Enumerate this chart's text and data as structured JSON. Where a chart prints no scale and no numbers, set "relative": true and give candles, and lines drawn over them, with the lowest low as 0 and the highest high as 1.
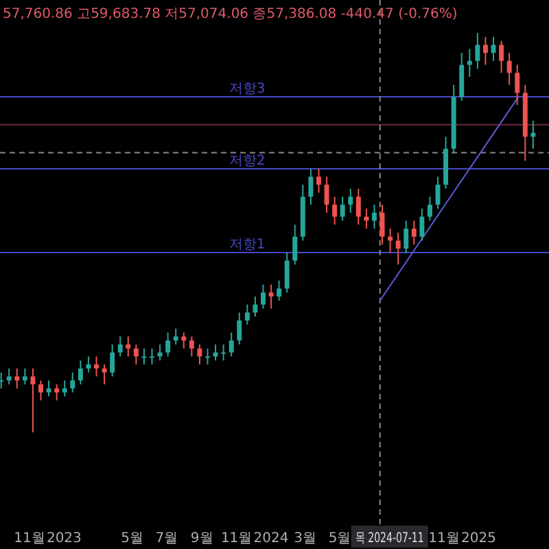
{
  "chart_data": {
    "type": "candlestick",
    "relative": true,
    "annotations": [
      "57,760.86 고59,683.78 저57,074.06 종57,386.08 -440.47 (-0.76%)"
    ],
    "x": [
      "2022-09-12",
      "2022-09-26",
      "2022-10-10",
      "2022-10-24",
      "2022-11-07",
      "2022-11-21",
      "2022-12-05",
      "2022-12-19",
      "2023-01-02",
      "2023-01-16",
      "2023-01-30",
      "2023-02-13",
      "2023-02-27",
      "2023-03-13",
      "2023-03-27",
      "2023-04-10",
      "2023-04-24",
      "2023-05-08",
      "2023-05-22",
      "2023-06-05",
      "2023-06-19",
      "2023-07-03",
      "2023-07-17",
      "2023-07-31",
      "2023-08-14",
      "2023-08-28",
      "2023-09-11",
      "2023-09-25",
      "2023-10-09",
      "2023-10-23",
      "2023-11-06",
      "2023-11-20",
      "2023-12-04",
      "2023-12-18",
      "2024-01-01",
      "2024-01-15",
      "2024-01-29",
      "2024-02-12",
      "2024-02-26",
      "2024-03-11",
      "2024-03-25",
      "2024-04-08",
      "2024-04-22",
      "2024-05-06",
      "2024-05-20",
      "2024-06-03",
      "2024-06-17",
      "2024-07-01",
      "2024-07-15",
      "2024-07-29",
      "2024-08-12",
      "2024-08-26",
      "2024-09-09",
      "2024-09-23",
      "2024-10-07",
      "2024-10-21",
      "2024-11-04",
      "2024-11-18",
      "2024-12-02",
      "2024-12-16",
      "2024-12-30",
      "2025-01-13",
      "2025-01-27",
      "2025-02-10",
      "2025-02-24",
      "2025-03-10",
      "2025-03-24",
      "2025-04-07"
    ],
    "ohlc": [
      [
        0.13,
        0.15,
        0.11,
        0.13
      ],
      [
        0.13,
        0.16,
        0.12,
        0.14
      ],
      [
        0.14,
        0.16,
        0.11,
        0.13
      ],
      [
        0.13,
        0.16,
        0.12,
        0.14
      ],
      [
        0.14,
        0.16,
        0.0,
        0.12
      ],
      [
        0.12,
        0.13,
        0.08,
        0.1
      ],
      [
        0.1,
        0.13,
        0.09,
        0.11
      ],
      [
        0.11,
        0.12,
        0.08,
        0.1
      ],
      [
        0.1,
        0.13,
        0.09,
        0.11
      ],
      [
        0.11,
        0.15,
        0.1,
        0.13
      ],
      [
        0.13,
        0.18,
        0.12,
        0.16
      ],
      [
        0.16,
        0.19,
        0.15,
        0.17
      ],
      [
        0.17,
        0.19,
        0.14,
        0.16
      ],
      [
        0.16,
        0.17,
        0.12,
        0.15
      ],
      [
        0.15,
        0.22,
        0.14,
        0.2
      ],
      [
        0.2,
        0.24,
        0.19,
        0.22
      ],
      [
        0.22,
        0.24,
        0.19,
        0.21
      ],
      [
        0.21,
        0.22,
        0.17,
        0.19
      ],
      [
        0.19,
        0.21,
        0.17,
        0.19
      ],
      [
        0.19,
        0.21,
        0.17,
        0.19
      ],
      [
        0.19,
        0.22,
        0.18,
        0.2
      ],
      [
        0.2,
        0.25,
        0.19,
        0.23
      ],
      [
        0.23,
        0.26,
        0.22,
        0.24
      ],
      [
        0.24,
        0.25,
        0.21,
        0.23
      ],
      [
        0.23,
        0.24,
        0.19,
        0.21
      ],
      [
        0.21,
        0.22,
        0.17,
        0.19
      ],
      [
        0.19,
        0.21,
        0.17,
        0.19
      ],
      [
        0.19,
        0.22,
        0.18,
        0.2
      ],
      [
        0.2,
        0.22,
        0.18,
        0.2
      ],
      [
        0.2,
        0.25,
        0.19,
        0.23
      ],
      [
        0.23,
        0.3,
        0.22,
        0.28
      ],
      [
        0.28,
        0.32,
        0.27,
        0.3
      ],
      [
        0.3,
        0.34,
        0.29,
        0.32
      ],
      [
        0.32,
        0.37,
        0.31,
        0.35
      ],
      [
        0.35,
        0.37,
        0.31,
        0.34
      ],
      [
        0.34,
        0.38,
        0.33,
        0.36
      ],
      [
        0.36,
        0.45,
        0.35,
        0.43
      ],
      [
        0.43,
        0.52,
        0.42,
        0.49
      ],
      [
        0.49,
        0.62,
        0.48,
        0.59
      ],
      [
        0.59,
        0.66,
        0.57,
        0.64
      ],
      [
        0.64,
        0.66,
        0.6,
        0.62
      ],
      [
        0.62,
        0.64,
        0.55,
        0.57
      ],
      [
        0.57,
        0.59,
        0.52,
        0.54
      ],
      [
        0.54,
        0.59,
        0.53,
        0.57
      ],
      [
        0.57,
        0.61,
        0.55,
        0.59
      ],
      [
        0.59,
        0.61,
        0.52,
        0.54
      ],
      [
        0.54,
        0.56,
        0.51,
        0.53
      ],
      [
        0.53,
        0.57,
        0.51,
        0.55
      ],
      [
        0.55,
        0.57,
        0.47,
        0.49
      ],
      [
        0.49,
        0.51,
        0.45,
        0.48
      ],
      [
        0.48,
        0.5,
        0.42,
        0.46
      ],
      [
        0.46,
        0.53,
        0.45,
        0.51
      ],
      [
        0.51,
        0.53,
        0.47,
        0.49
      ],
      [
        0.49,
        0.56,
        0.48,
        0.54
      ],
      [
        0.54,
        0.59,
        0.53,
        0.57
      ],
      [
        0.57,
        0.64,
        0.56,
        0.62
      ],
      [
        0.62,
        0.74,
        0.61,
        0.71
      ],
      [
        0.71,
        0.87,
        0.7,
        0.84
      ],
      [
        0.84,
        0.95,
        0.83,
        0.92
      ],
      [
        0.92,
        0.96,
        0.89,
        0.93
      ],
      [
        0.93,
        1.0,
        0.91,
        0.97
      ],
      [
        0.97,
        0.99,
        0.92,
        0.95
      ],
      [
        0.95,
        0.99,
        0.93,
        0.97
      ],
      [
        0.97,
        0.98,
        0.9,
        0.93
      ],
      [
        0.93,
        0.95,
        0.87,
        0.9
      ],
      [
        0.9,
        0.92,
        0.82,
        0.85
      ],
      [
        0.85,
        0.87,
        0.68,
        0.74
      ],
      [
        0.74,
        0.78,
        0.71,
        0.75
      ]
    ],
    "series": [
      {
        "type": "line",
        "x": [
          "2024-07-11",
          "2025-03-12"
        ],
        "values": [
          0.33,
          0.84
        ],
        "color": "#5a5ad8"
      }
    ],
    "xlim": [
      "2022-09-10",
      "2025-05-05"
    ],
    "xticks": [
      {
        "value": "2022-11-01",
        "label": "11월"
      },
      {
        "value": "2023-01-01",
        "label": "2023"
      },
      {
        "value": "2023-05-01",
        "label": "5월"
      },
      {
        "value": "2023-07-01",
        "label": "7월"
      },
      {
        "value": "2023-09-01",
        "label": "9월"
      },
      {
        "value": "2023-11-01",
        "label": "11월"
      },
      {
        "value": "2024-01-01",
        "label": "2024"
      },
      {
        "value": "2024-03-01",
        "label": "3월"
      },
      {
        "value": "2024-05-01",
        "label": "5월"
      },
      {
        "value": "2024-11-01",
        "label": "11월"
      },
      {
        "value": "2025-01-01",
        "label": "2025"
      }
    ],
    "ref_lines": [
      {
        "axis": "y",
        "value": 0.84,
        "label": "저항3",
        "color": "#4848c8"
      },
      {
        "axis": "y",
        "value": 0.66,
        "label": "저항2",
        "color": "#4848c8"
      },
      {
        "axis": "y",
        "value": 0.45,
        "label": "저항1",
        "color": "#4848c8"
      },
      {
        "axis": "y",
        "value": 0.77,
        "color": "#6a2a3a"
      },
      {
        "axis": "y",
        "value": 0.7,
        "color": "#8a8a8a",
        "line_style": "dashed"
      },
      {
        "axis": "x",
        "value": "2024-07-11",
        "label": "목 2024-07-11",
        "color": "#8a8a8a",
        "line_style": "dashed"
      }
    ]
  }
}
